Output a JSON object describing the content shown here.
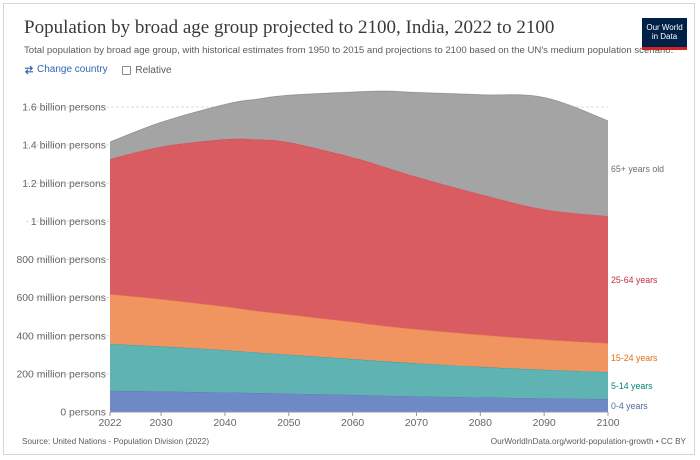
{
  "header": {
    "title": "Population by broad age group projected to 2100, India, 2022 to 2100",
    "subtitle": "Total population by broad age group, with historical estimates from 1950 to 2015 and projections to 2100 based on the UN's medium population scenario.",
    "logo_line1": "Our World",
    "logo_line2": "in Data"
  },
  "controls": {
    "change_country": "Change country",
    "relative": "Relative",
    "relative_checked": false
  },
  "footer": {
    "source": "Source: United Nations - Population Division (2022)",
    "credit": "OurWorldInData.org/world-population-growth • CC BY"
  },
  "chart_data": {
    "type": "area",
    "stacked": true,
    "x": [
      2022,
      2030,
      2040,
      2045,
      2050,
      2060,
      2065,
      2070,
      2080,
      2090,
      2100
    ],
    "xlim": [
      2022,
      2100
    ],
    "ylim": [
      0,
      1700000000
    ],
    "x_ticks": [
      "2022",
      "2030",
      "2040",
      "2050",
      "2060",
      "2070",
      "2080",
      "2090",
      "2100"
    ],
    "y_ticks": [
      {
        "value": 0,
        "label": "0 persons"
      },
      {
        "value": 200000000,
        "label": "200 million persons"
      },
      {
        "value": 400000000,
        "label": "400 million persons"
      },
      {
        "value": 600000000,
        "label": "600 million persons"
      },
      {
        "value": 800000000,
        "label": "800 million persons"
      },
      {
        "value": 1000000000,
        "label": "1 billion persons"
      },
      {
        "value": 1200000000,
        "label": "1.2 billion persons"
      },
      {
        "value": 1400000000,
        "label": "1.4 billion persons"
      },
      {
        "value": 1600000000,
        "label": "1.6 billion persons"
      }
    ],
    "grid": "horizontal-dashed",
    "legend": "right-inline",
    "series": [
      {
        "name": "0-4 years",
        "color": "#4c6a9c",
        "fill": "#6d89c6",
        "values": [
          112000000,
          108000000,
          103000000,
          100000000,
          97000000,
          90000000,
          86000000,
          83000000,
          77000000,
          72000000,
          68000000
        ]
      },
      {
        "name": "5-14 years",
        "color": "#00847e",
        "fill": "#5fb3b3",
        "values": [
          245000000,
          236000000,
          222000000,
          212000000,
          204000000,
          188000000,
          180000000,
          173000000,
          160000000,
          150000000,
          142000000
        ]
      },
      {
        "name": "15-24 years",
        "color": "#e56e11",
        "fill": "#f0955f",
        "values": [
          260000000,
          248000000,
          228000000,
          218000000,
          210000000,
          194000000,
          185000000,
          178000000,
          168000000,
          158000000,
          150000000
        ]
      },
      {
        "name": "25-64 years",
        "color": "#c4303f",
        "fill": "#d95c63",
        "values": [
          710000000,
          800000000,
          878000000,
          900000000,
          904000000,
          864000000,
          835000000,
          800000000,
          738000000,
          683000000,
          668000000
        ]
      },
      {
        "name": "65+ years old",
        "color": "#6d6d6d",
        "fill": "#a4a4a4",
        "values": [
          90000000,
          128000000,
          183000000,
          212000000,
          247000000,
          343000000,
          398000000,
          443000000,
          522000000,
          587000000,
          500000000
        ]
      }
    ]
  }
}
